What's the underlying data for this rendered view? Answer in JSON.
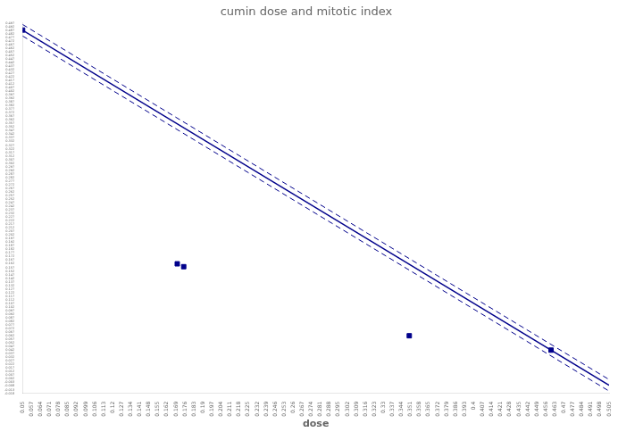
{
  "chart_data": {
    "type": "scatter",
    "title": "cumin dose and mitotic index",
    "xlabel": "dose",
    "xlim": [
      0.05,
      0.505
    ],
    "ylim": [
      -0.018,
      0.497
    ],
    "xticks": [
      0.05,
      0.057,
      0.064,
      0.071,
      0.078,
      0.085,
      0.092,
      0.099,
      0.106,
      0.113,
      0.12,
      0.127,
      0.134,
      0.141,
      0.148,
      0.155,
      0.162,
      0.169,
      0.176,
      0.183,
      0.19,
      0.197,
      0.204,
      0.211,
      0.218,
      0.225,
      0.232,
      0.239,
      0.246,
      0.253,
      0.26,
      0.267,
      0.274,
      0.281,
      0.288,
      0.295,
      0.302,
      0.309,
      0.316,
      0.323,
      0.33,
      0.337,
      0.344,
      0.351,
      0.358,
      0.365,
      0.372,
      0.379,
      0.386,
      0.393,
      0.4,
      0.407,
      0.414,
      0.421,
      0.428,
      0.435,
      0.442,
      0.449,
      0.456,
      0.463,
      0.47,
      0.477,
      0.484,
      0.491,
      0.498,
      0.505
    ],
    "yticks": [
      -0.018,
      -0.013,
      -0.008,
      -0.003,
      0.002,
      0.007,
      0.012,
      0.017,
      0.022,
      0.027,
      0.032,
      0.037,
      0.042,
      0.047,
      0.052,
      0.057,
      0.062,
      0.067,
      0.072,
      0.077,
      0.082,
      0.087,
      0.092,
      0.097,
      0.102,
      0.107,
      0.112,
      0.117,
      0.122,
      0.127,
      0.132,
      0.137,
      0.142,
      0.147,
      0.152,
      0.157,
      0.162,
      0.167,
      0.172,
      0.177,
      0.182,
      0.187,
      0.192,
      0.197,
      0.202,
      0.207,
      0.212,
      0.217,
      0.222,
      0.227,
      0.232,
      0.237,
      0.242,
      0.247,
      0.252,
      0.257,
      0.262,
      0.267,
      0.272,
      0.277,
      0.282,
      0.287,
      0.292,
      0.297,
      0.302,
      0.307,
      0.312,
      0.317,
      0.322,
      0.327,
      0.332,
      0.337,
      0.342,
      0.347,
      0.352,
      0.357,
      0.362,
      0.367,
      0.372,
      0.377,
      0.382,
      0.387,
      0.392,
      0.397,
      0.402,
      0.407,
      0.412,
      0.417,
      0.422,
      0.427,
      0.432,
      0.437,
      0.442,
      0.447,
      0.452,
      0.457,
      0.462,
      0.467,
      0.472,
      0.477,
      0.482,
      0.487,
      0.492,
      0.497
    ],
    "grid": false,
    "series": [
      {
        "type": "line",
        "line_style": "solid",
        "color": "#00008B",
        "x": [
          0.05,
          0.505
        ],
        "values": [
          0.48675,
          -0.006925
        ]
      },
      {
        "type": "line",
        "line_style": "dashed",
        "color": "#00008B",
        "x": [
          0.05,
          0.505
        ],
        "values": [
          0.49475,
          0.001075
        ]
      },
      {
        "type": "line",
        "line_style": "dashed",
        "color": "#00008B",
        "x": [
          0.05,
          0.505
        ],
        "values": [
          0.47875,
          -0.014925
        ]
      },
      {
        "type": "scatter",
        "marker": "square",
        "color": "#00008B",
        "x": [
          0.05,
          0.17,
          0.175,
          0.35,
          0.46
        ],
        "values": [
          0.487,
          0.162,
          0.158,
          0.062,
          0.042
        ]
      }
    ]
  }
}
